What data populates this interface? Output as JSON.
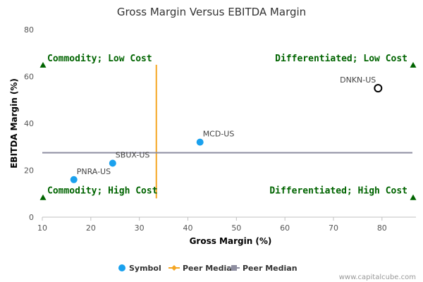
{
  "chart_data": {
    "type": "scatter",
    "title": "Gross Margin Versus EBITDA Margin",
    "xlabel": "Gross Margin (%)",
    "ylabel": "EBITDA Margin (%)",
    "xlim": [
      10,
      87
    ],
    "ylim": [
      0,
      80
    ],
    "x_ticks": [
      10,
      20,
      30,
      40,
      50,
      60,
      70,
      80
    ],
    "y_ticks": [
      0,
      20,
      40,
      60,
      80
    ],
    "grid": false,
    "legend_position": "bottom",
    "points": [
      {
        "label": "PNRA-US",
        "x": 16.5,
        "y": 16
      },
      {
        "label": "SBUX-US",
        "x": 24.5,
        "y": 23
      },
      {
        "label": "MCD-US",
        "x": 42.5,
        "y": 32
      },
      {
        "label": "DNKN-US",
        "x": 79.2,
        "y": 55,
        "hollow": true
      }
    ],
    "median_x": 33.5,
    "median_y": 27.5,
    "median_x_span": [
      8,
      65
    ],
    "quadrant_labels": [
      {
        "text": "Commodity; Low Cost",
        "corner": "top-left",
        "y": 65
      },
      {
        "text": "Differentiated; Low Cost",
        "corner": "top-right",
        "y": 65
      },
      {
        "text": "Commodity; High Cost",
        "corner": "bottom-left",
        "y": 8.5
      },
      {
        "text": "Differentiated; High Cost",
        "corner": "bottom-right",
        "y": 8.5
      }
    ],
    "legend": [
      {
        "text": "Symbol",
        "marker": "circle",
        "color": "#1aa1ee"
      },
      {
        "text": "Peer Median",
        "marker": "diamond-line",
        "color": "#f5a623"
      },
      {
        "text": "Peer Median",
        "marker": "square-line",
        "color": "#8e8ea0"
      }
    ],
    "colors": {
      "point": "#1aa1ee",
      "median_x_line": "#f5a623",
      "median_y_line": "#8e8ea0",
      "quadrant_text": "#006400",
      "triangle": "#006400"
    }
  },
  "credit": "www.capitalcube.com"
}
